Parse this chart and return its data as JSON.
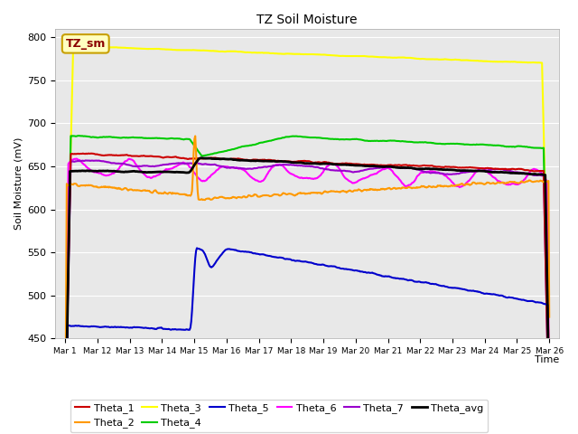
{
  "title": "TZ Soil Moisture",
  "xlabel": "Time",
  "ylabel": "Soil Moisture (mV)",
  "ylim": [
    450,
    810
  ],
  "background_color": "#e8e8e8",
  "label_box_text": "TZ_sm",
  "label_box_facecolor": "#ffffc0",
  "label_box_edgecolor": "#c8a000",
  "label_text_color": "#8b0000",
  "series": {
    "Theta_1": {
      "color": "#cc0000",
      "lw": 1.5
    },
    "Theta_2": {
      "color": "#ff9900",
      "lw": 1.5
    },
    "Theta_3": {
      "color": "#ffff00",
      "lw": 1.5
    },
    "Theta_4": {
      "color": "#00cc00",
      "lw": 1.5
    },
    "Theta_5": {
      "color": "#0000cc",
      "lw": 1.5
    },
    "Theta_6": {
      "color": "#ff00ff",
      "lw": 1.5
    },
    "Theta_7": {
      "color": "#9900cc",
      "lw": 1.5
    },
    "Theta_avg": {
      "color": "#000000",
      "lw": 2.0
    }
  },
  "x_tick_labels": [
    "Mar 1",
    "Mar 12",
    "Mar 13",
    "Mar 14",
    "Mar 15",
    "Mar 16",
    "Mar 17",
    "Mar 18",
    "Mar 19",
    "Mar 20",
    "Mar 21",
    "Mar 22",
    "Mar 23",
    "Mar 24",
    "Mar 25",
    "Mar 26"
  ],
  "yticks": [
    450,
    500,
    550,
    600,
    650,
    700,
    750,
    800
  ],
  "grid_color": "#ffffff",
  "grid_lw": 0.8
}
